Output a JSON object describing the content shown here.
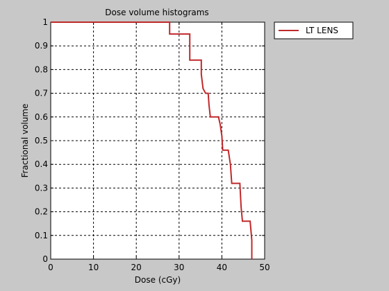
{
  "chart_data": {
    "type": "line",
    "title": "Dose volume histograms",
    "xlabel": "Dose (cGy)",
    "ylabel": "Fractional volume",
    "xlim": [
      0,
      50
    ],
    "ylim": [
      0,
      1
    ],
    "xticks": [
      0,
      10,
      20,
      30,
      40,
      50
    ],
    "yticks": [
      0,
      0.1,
      0.2,
      0.3,
      0.4,
      0.5,
      0.6,
      0.7,
      0.8,
      0.9,
      1
    ],
    "grid": true,
    "legend_position": "outside-top-right",
    "series": [
      {
        "name": "LT LENS",
        "color": "#c0282a",
        "x": [
          0,
          27.8,
          27.8,
          32.5,
          32.5,
          35.2,
          35.2,
          35.6,
          36.2,
          36.8,
          37.0,
          37.3,
          39.2,
          39.6,
          40.0,
          40.2,
          41.5,
          42.0,
          42.3,
          44.2,
          44.5,
          44.8,
          46.6,
          47.0,
          47.0
        ],
        "y": [
          1,
          1,
          0.95,
          0.95,
          0.84,
          0.84,
          0.78,
          0.72,
          0.7,
          0.7,
          0.65,
          0.6,
          0.6,
          0.57,
          0.52,
          0.46,
          0.46,
          0.4,
          0.32,
          0.32,
          0.22,
          0.16,
          0.16,
          0.08,
          0
        ]
      }
    ]
  }
}
